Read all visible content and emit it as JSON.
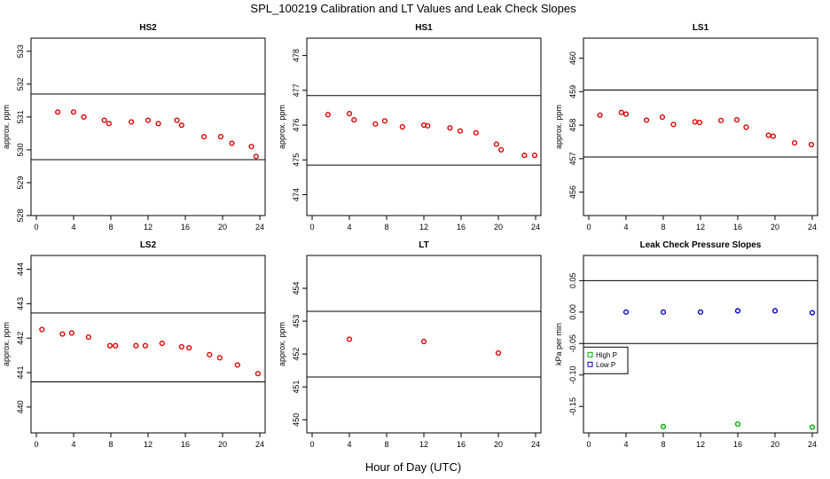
{
  "title": "SPL_100219  Calibration and LT Values and Leak Check Slopes",
  "xlabel": "Hour of Day (UTC)",
  "colors": {
    "red": "#dd0000",
    "green": "#00aa00",
    "blue": "#0000cc",
    "line": "#000000"
  },
  "chart_data": [
    {
      "type": "scatter",
      "title": "HS2",
      "ylabel": "approx. ppm",
      "xlim": [
        0,
        24
      ],
      "xticks": [
        0,
        4,
        8,
        12,
        16,
        20,
        24
      ],
      "ylim": [
        528,
        533.4
      ],
      "yticks": [
        528,
        529,
        530,
        531,
        532,
        533
      ],
      "hlines": [
        531.7,
        529.7
      ],
      "series": [
        {
          "name": "HS2",
          "color": "red",
          "x": [
            2.3,
            4.0,
            5.1,
            7.3,
            7.8,
            10.2,
            12.0,
            13.1,
            15.1,
            15.6,
            18.0,
            19.8,
            21.0,
            23.1,
            23.6
          ],
          "y": [
            531.15,
            531.15,
            531.0,
            530.9,
            530.8,
            530.85,
            530.9,
            530.8,
            530.9,
            530.75,
            530.4,
            530.4,
            530.2,
            530.1,
            529.8
          ]
        }
      ]
    },
    {
      "type": "scatter",
      "title": "HS1",
      "ylabel": "approx. ppm",
      "xlim": [
        0,
        24
      ],
      "xticks": [
        0,
        4,
        8,
        12,
        16,
        20,
        24
      ],
      "ylim": [
        473.4,
        478.5
      ],
      "yticks": [
        474,
        475,
        476,
        477,
        478
      ],
      "hlines": [
        476.85,
        474.85
      ],
      "series": [
        {
          "name": "HS1",
          "color": "red",
          "x": [
            1.7,
            4.0,
            4.5,
            6.8,
            7.8,
            9.7,
            12.0,
            12.4,
            14.8,
            15.9,
            17.6,
            19.8,
            20.3,
            22.8,
            23.9
          ],
          "y": [
            476.3,
            476.33,
            476.15,
            476.03,
            476.12,
            475.95,
            476.0,
            475.98,
            475.92,
            475.83,
            475.78,
            475.45,
            475.29,
            475.13,
            475.13
          ]
        }
      ]
    },
    {
      "type": "scatter",
      "title": "LS1",
      "ylabel": "approx. ppm",
      "xlim": [
        0,
        24
      ],
      "xticks": [
        0,
        4,
        8,
        12,
        16,
        20,
        24
      ],
      "ylim": [
        455.3,
        460.6
      ],
      "yticks": [
        456,
        457,
        458,
        459,
        460
      ],
      "hlines": [
        459.05,
        457.05
      ],
      "series": [
        {
          "name": "LS1",
          "color": "red",
          "x": [
            1.2,
            3.5,
            4.0,
            6.2,
            7.9,
            9.1,
            11.4,
            11.9,
            14.2,
            15.9,
            16.9,
            19.3,
            19.8,
            22.1,
            23.9
          ],
          "y": [
            458.3,
            458.38,
            458.33,
            458.15,
            458.24,
            458.02,
            458.1,
            458.08,
            458.14,
            458.16,
            457.94,
            457.7,
            457.67,
            457.47,
            457.42
          ]
        }
      ]
    },
    {
      "type": "scatter",
      "title": "LS2",
      "ylabel": "approx. ppm",
      "xlim": [
        0,
        24
      ],
      "xticks": [
        0,
        4,
        8,
        12,
        16,
        20,
        24
      ],
      "ylim": [
        439.25,
        444.4
      ],
      "yticks": [
        440,
        441,
        442,
        443,
        444
      ],
      "hlines": [
        442.73,
        440.73
      ],
      "series": [
        {
          "name": "LS2",
          "color": "red",
          "x": [
            0.6,
            2.8,
            3.8,
            5.6,
            7.9,
            8.5,
            10.7,
            11.7,
            13.5,
            15.6,
            16.4,
            18.6,
            19.7,
            21.6,
            23.8
          ],
          "y": [
            442.25,
            442.12,
            442.15,
            442.03,
            441.78,
            441.78,
            441.78,
            441.78,
            441.85,
            441.75,
            441.72,
            441.52,
            441.43,
            441.22,
            440.97
          ]
        }
      ]
    },
    {
      "type": "scatter",
      "title": "LT",
      "ylabel": "approx. ppm",
      "xlim": [
        0,
        24
      ],
      "xticks": [
        0,
        4,
        8,
        12,
        16,
        20,
        24
      ],
      "ylim": [
        449.6,
        455.0
      ],
      "yticks": [
        450,
        451,
        452,
        453,
        454
      ],
      "hlines": [
        453.3,
        451.3
      ],
      "series": [
        {
          "name": "LT",
          "color": "red",
          "x": [
            4.0,
            12.0,
            20.0
          ],
          "y": [
            452.45,
            452.38,
            452.03
          ]
        }
      ]
    },
    {
      "type": "scatter",
      "title": "Leak Check Pressure Slopes",
      "ylabel": "kPa per min",
      "xlim": [
        0,
        24
      ],
      "xticks": [
        0,
        4,
        8,
        12,
        16,
        20,
        24
      ],
      "ylim": [
        -0.192,
        0.09
      ],
      "yticks": [
        -0.15,
        -0.1,
        -0.05,
        0.0,
        0.05
      ],
      "ytick_labels": [
        "-0.15",
        "-0.10",
        "-0.05",
        "0.00",
        "0.05"
      ],
      "hlines": [
        0.05,
        -0.05
      ],
      "legend": {
        "position": "left",
        "entries": [
          "High P",
          "Low P"
        ]
      },
      "series": [
        {
          "name": "High P",
          "color": "green",
          "x": [
            8.0,
            16.0,
            24.0
          ],
          "y": [
            -0.182,
            -0.178,
            -0.183
          ]
        },
        {
          "name": "Low P",
          "color": "blue",
          "x": [
            4.0,
            8.0,
            12.0,
            16.0,
            20.0,
            24.0
          ],
          "y": [
            0.0,
            0.0,
            0.0,
            0.002,
            0.002,
            -0.001
          ]
        }
      ]
    }
  ]
}
